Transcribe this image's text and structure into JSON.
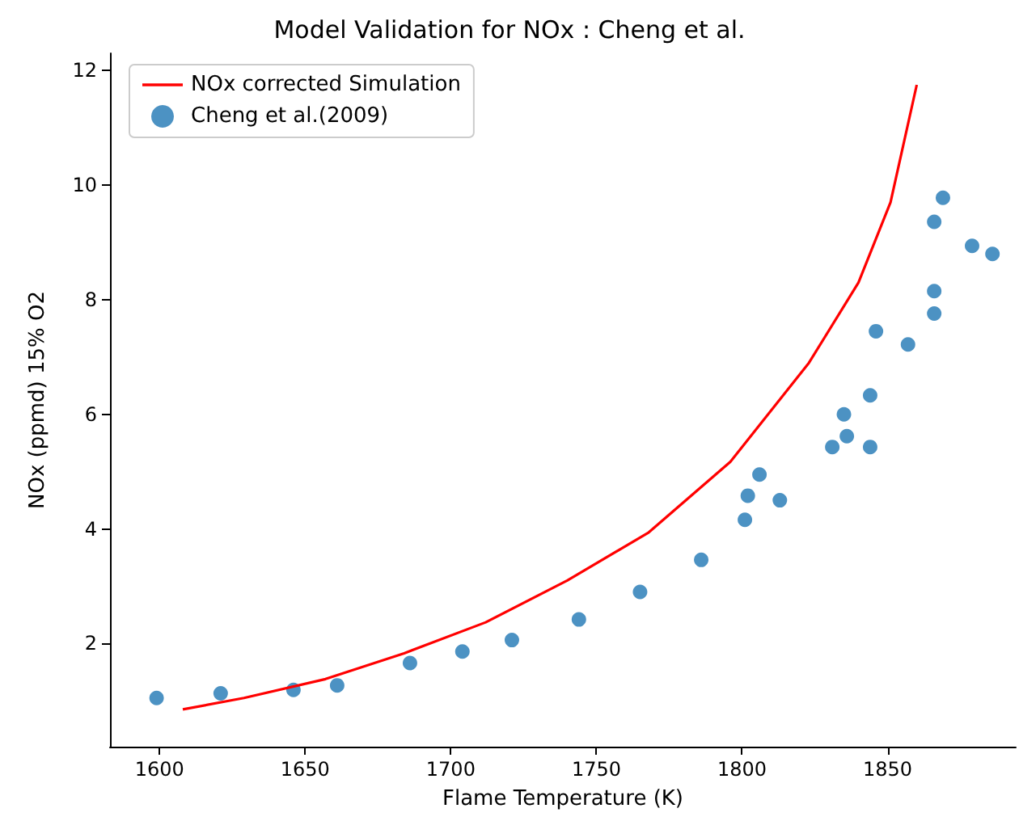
{
  "chart_data": {
    "type": "line",
    "title": "Model Validation for NOx : Cheng et al.",
    "xlabel": "Flame Temperature (K)",
    "ylabel": "NOx (ppmd) 15% O2",
    "xlim": [
      1583,
      1894
    ],
    "xticks": [
      1600,
      1650,
      1700,
      1750,
      1800,
      1850
    ],
    "ylim": [
      0.2,
      12.3
    ],
    "yticks": [
      2,
      4,
      6,
      8,
      10,
      12
    ],
    "grid": false,
    "legend": "top left",
    "series": [
      {
        "name": "NOx corrected Simulation",
        "color": "#ff0000",
        "marker": "none",
        "line_style": "solid",
        "x": [
          1608,
          1629,
          1657,
          1684,
          1712,
          1740,
          1768,
          1796,
          1823,
          1840,
          1851,
          1860
        ],
        "values": [
          0.85,
          1.05,
          1.38,
          1.83,
          2.37,
          3.1,
          3.94,
          5.17,
          6.9,
          8.3,
          9.7,
          11.75
        ]
      },
      {
        "name": "Cheng et al.(2009)",
        "type": "scatter",
        "color": "#1f77b4",
        "marker": "circle",
        "x": [
          1599,
          1621,
          1646,
          1661,
          1686,
          1704,
          1721,
          1744,
          1765,
          1786,
          1801,
          1802,
          1806,
          1813,
          1831,
          1835,
          1836,
          1844,
          1844,
          1846,
          1857,
          1866,
          1866,
          1866,
          1869,
          1879,
          1886
        ],
        "values": [
          1.05,
          1.13,
          1.19,
          1.27,
          1.66,
          1.86,
          2.06,
          2.42,
          2.9,
          3.46,
          4.16,
          4.58,
          4.95,
          4.5,
          5.43,
          6.0,
          5.62,
          6.33,
          5.43,
          7.45,
          7.22,
          9.36,
          8.15,
          7.76,
          9.78,
          8.94,
          8.8
        ]
      }
    ]
  }
}
